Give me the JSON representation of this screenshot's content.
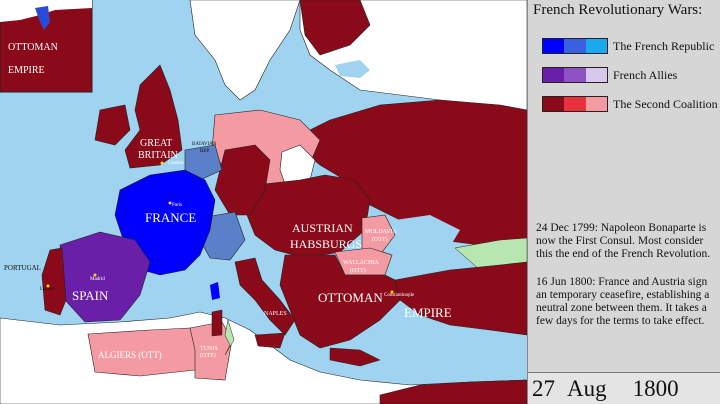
{
  "panel": {
    "title": "French Revolutionary Wars:",
    "legend": [
      {
        "label": "The French Republic",
        "colors": [
          "#0000ff",
          "#3a5fe0",
          "#1aa8f0"
        ]
      },
      {
        "label": "French Allies",
        "colors": [
          "#6a1fa8",
          "#8f52c4",
          "#d8c8ec"
        ]
      },
      {
        "label": "The Second Coalition",
        "colors": [
          "#8b0a1a",
          "#e8323e",
          "#f49aa2"
        ]
      }
    ],
    "events": [
      "24  Dec  1799: Napoleon Bonaparte is now the First Consul. Most consider this the end of the French Revolution.",
      "16  Jun  1800: France and Austria sign an temporary ceasefire, establishing a neutral zone between them. It takes a few days for the terms to take effect."
    ],
    "date": {
      "day": "27",
      "month": "Aug",
      "year": "1800"
    }
  },
  "map": {
    "labels": {
      "ottoman_inset": "OTTOMAN",
      "empire_inset": "EMPIRE",
      "great_britain_1": "GREAT",
      "great_britain_2": "BRITAIN",
      "london": "London",
      "batavian": "BATAVIAN",
      "rep": "REP.",
      "france": "FRANCE",
      "paris": "Paris",
      "austrian": "AUSTRIAN",
      "habsburgs": "HABSBURGS",
      "moldavia": "MOLDAVIA",
      "moldavia_ott": "(OTT)",
      "wallachia": "WALLACHIA",
      "wallachia_ott": "(OTT)",
      "ottoman": "OTTOMAN",
      "empire": "EMPIRE",
      "constantinople": "Constantinople",
      "spain": "SPAIN",
      "madrid": "Madrid",
      "portugal": "PORTUGAL",
      "lisbon": "Lisbon",
      "naples": "NAPLES",
      "algiers": "ALGIERS (OTT)",
      "tunis": "TUNIS",
      "tunis_ott": "(OTT)"
    },
    "colors": {
      "sea": "#9fd3f0",
      "neutral": "#ffffff",
      "france": "#0000ff",
      "french_sister": "#5b7fc8",
      "french_ally": "#6a1fa8",
      "coalition_dark": "#8b0a1a",
      "coalition_mid": "#e8323e",
      "coalition_light": "#f49aa2",
      "green": "#b8e6b0"
    }
  }
}
